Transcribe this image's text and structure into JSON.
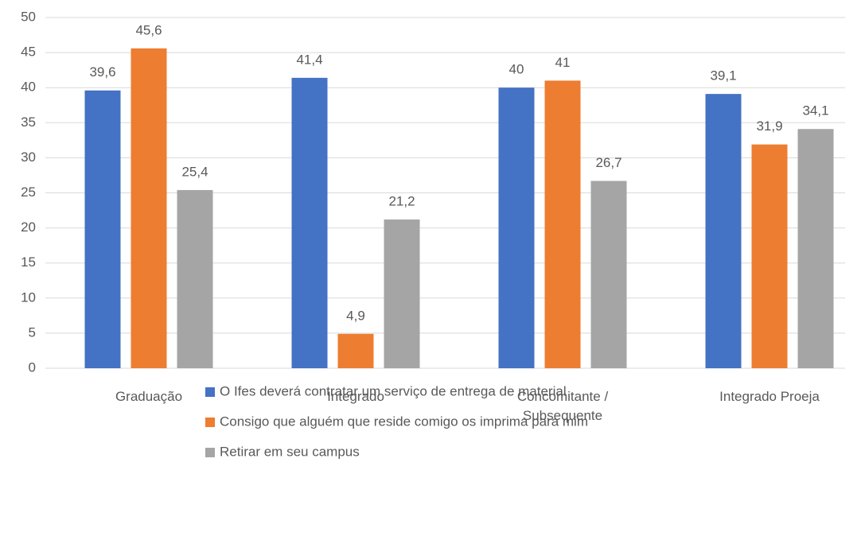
{
  "chart_data": {
    "type": "bar",
    "categories": [
      "Graduação",
      "Integrado",
      "Concomitante / Subsequente",
      "Integrado Proeja"
    ],
    "series": [
      {
        "name": "O Ifes deverá contratar um serviço de entrega de material",
        "color": "#4472c4",
        "values": [
          39.6,
          41.4,
          40,
          39.1
        ],
        "value_labels": [
          "39,6",
          "41,4",
          "40",
          "39,1"
        ]
      },
      {
        "name": "Consigo que alguém que reside comigo os imprima para mim",
        "color": "#ed7d31",
        "values": [
          45.6,
          4.9,
          41,
          31.9
        ],
        "value_labels": [
          "45,6",
          "4,9",
          "41",
          "31,9"
        ]
      },
      {
        "name": "Retirar em seu campus",
        "color": "#a5a5a5",
        "values": [
          25.4,
          21.2,
          26.7,
          34.1
        ],
        "value_labels": [
          "25,4",
          "21,2",
          "26,7",
          "34,1"
        ]
      }
    ],
    "ylim": [
      0,
      50
    ],
    "yticks": [
      0,
      5,
      10,
      15,
      20,
      25,
      30,
      35,
      40,
      45,
      50
    ],
    "grid": true,
    "legend": "bottom"
  }
}
